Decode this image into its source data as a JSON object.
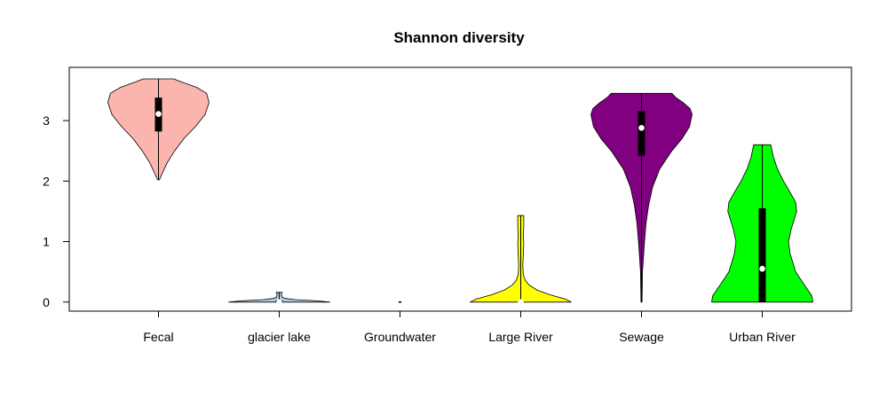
{
  "chart_data": {
    "type": "violin",
    "title": "Shannon diversity",
    "xlabel": "",
    "ylabel": "",
    "ylim": [
      -0.15,
      3.88
    ],
    "yticks": [
      0,
      1,
      2,
      3
    ],
    "categories": [
      "Fecal",
      "glacier lake",
      "Groundwater",
      "Large River",
      "Sewage",
      "Urban River"
    ],
    "groups": [
      {
        "name": "Fecal",
        "color": "#FBB4AE",
        "min": 2.02,
        "max": 3.69,
        "q1": 2.82,
        "median": 3.11,
        "q3": 3.38,
        "density": [
          [
            2.02,
            0.02
          ],
          [
            2.1,
            0.06
          ],
          [
            2.3,
            0.17
          ],
          [
            2.5,
            0.32
          ],
          [
            2.7,
            0.5
          ],
          [
            2.9,
            0.73
          ],
          [
            3.1,
            0.92
          ],
          [
            3.3,
            1.0
          ],
          [
            3.45,
            0.95
          ],
          [
            3.55,
            0.75
          ],
          [
            3.64,
            0.45
          ],
          [
            3.69,
            0.3
          ]
        ]
      },
      {
        "name": "glacier lake",
        "color": "#B3CDE3",
        "min": 0.0,
        "max": 0.16,
        "q1": 0.0,
        "median": 0.0,
        "q3": 0.03,
        "density": [
          [
            0.0,
            1.0
          ],
          [
            0.02,
            0.75
          ],
          [
            0.04,
            0.32
          ],
          [
            0.06,
            0.12
          ],
          [
            0.08,
            0.06
          ],
          [
            0.12,
            0.04
          ],
          [
            0.16,
            0.06
          ]
        ]
      },
      {
        "name": "Groundwater",
        "color": "#CCEBC5",
        "min": 0.0,
        "max": 0.0,
        "q1": 0.0,
        "median": 0.0,
        "q3": 0.0,
        "density": [
          [
            0.0,
            0.02
          ]
        ]
      },
      {
        "name": "Large River",
        "color": "#FFFF00",
        "min": 0.0,
        "max": 1.43,
        "q1": 0.0,
        "median": 0.0,
        "q3": 0.0,
        "density": [
          [
            0.0,
            1.0
          ],
          [
            0.05,
            0.88
          ],
          [
            0.12,
            0.58
          ],
          [
            0.2,
            0.32
          ],
          [
            0.28,
            0.17
          ],
          [
            0.36,
            0.09
          ],
          [
            0.45,
            0.05
          ],
          [
            0.6,
            0.04
          ],
          [
            0.8,
            0.05
          ],
          [
            0.95,
            0.06
          ],
          [
            1.1,
            0.05
          ],
          [
            1.25,
            0.06
          ],
          [
            1.35,
            0.06
          ],
          [
            1.43,
            0.06
          ]
        ]
      },
      {
        "name": "Sewage",
        "color": "#800080",
        "min": 0.0,
        "max": 3.45,
        "q1": 2.42,
        "median": 2.88,
        "q3": 3.16,
        "density": [
          [
            0.0,
            0.01
          ],
          [
            0.5,
            0.02
          ],
          [
            1.0,
            0.06
          ],
          [
            1.3,
            0.09
          ],
          [
            1.6,
            0.14
          ],
          [
            1.9,
            0.22
          ],
          [
            2.2,
            0.36
          ],
          [
            2.5,
            0.6
          ],
          [
            2.7,
            0.8
          ],
          [
            2.9,
            0.95
          ],
          [
            3.1,
            1.0
          ],
          [
            3.2,
            0.96
          ],
          [
            3.3,
            0.82
          ],
          [
            3.38,
            0.68
          ],
          [
            3.45,
            0.6
          ]
        ]
      },
      {
        "name": "Urban River",
        "color": "#00FF00",
        "min": 0.0,
        "max": 2.6,
        "q1": 0.0,
        "median": 0.55,
        "q3": 1.55,
        "density": [
          [
            0.0,
            1.0
          ],
          [
            0.1,
            0.98
          ],
          [
            0.3,
            0.82
          ],
          [
            0.5,
            0.66
          ],
          [
            0.8,
            0.55
          ],
          [
            1.0,
            0.52
          ],
          [
            1.2,
            0.57
          ],
          [
            1.5,
            0.68
          ],
          [
            1.65,
            0.66
          ],
          [
            1.8,
            0.56
          ],
          [
            2.0,
            0.42
          ],
          [
            2.2,
            0.3
          ],
          [
            2.4,
            0.22
          ],
          [
            2.6,
            0.17
          ]
        ]
      }
    ]
  }
}
